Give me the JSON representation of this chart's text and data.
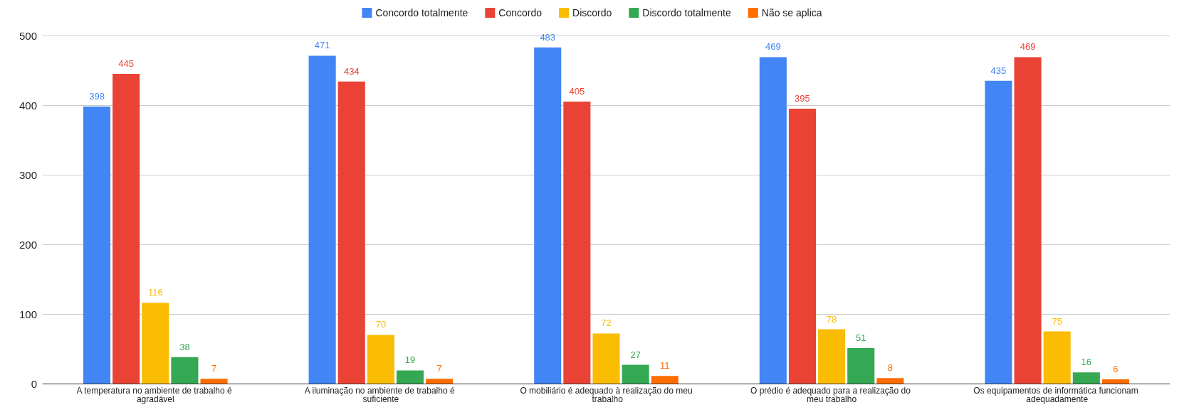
{
  "chart_data": {
    "type": "bar",
    "categories": [
      "A temperatura no ambiente de trabalho é agradável",
      "A iluminação no ambiente de trabalho é suficiente",
      "O mobiliário é adequado à realização do meu trabalho",
      "O prédio é adequado para a realização do meu trabalho",
      "Os equipamentos de informática funcionam adequadamente"
    ],
    "series": [
      {
        "name": "Concordo totalmente",
        "color": "#4285f4",
        "values": [
          398,
          471,
          483,
          469,
          435
        ]
      },
      {
        "name": "Concordo",
        "color": "#ea4335",
        "values": [
          445,
          434,
          405,
          395,
          469
        ]
      },
      {
        "name": "Discordo",
        "color": "#fbbc04",
        "values": [
          116,
          70,
          72,
          78,
          75
        ]
      },
      {
        "name": "Discordo totalmente",
        "color": "#34a853",
        "values": [
          38,
          19,
          27,
          51,
          16
        ]
      },
      {
        "name": "Não se aplica",
        "color": "#ff6d01",
        "values": [
          7,
          7,
          11,
          8,
          6
        ]
      }
    ],
    "ylim": [
      0,
      500
    ],
    "yticks": [
      0,
      100,
      200,
      300,
      400,
      500
    ],
    "grid": "y",
    "legend": "top",
    "data_labels": true
  }
}
